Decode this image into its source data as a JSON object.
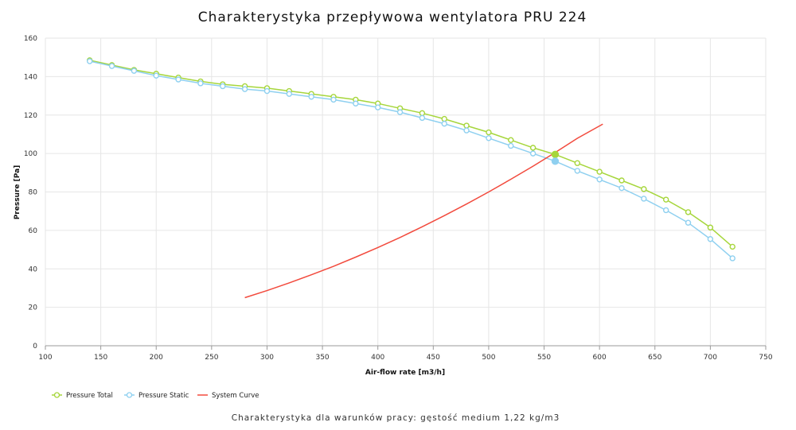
{
  "page": {
    "title": "Charakterystyka przepływowa wentylatora PRU 224",
    "footnote": "Charakterystyka dla warunków pracy: gęstość medium 1,22 kg/m3"
  },
  "chart_data": {
    "type": "line",
    "title": "Charakterystyka przepływowa wentylatora PRU 224",
    "xlabel": "Air-flow rate [m3/h]",
    "ylabel": "Pressure [Pa]",
    "xlim": [
      100,
      750
    ],
    "ylim": [
      0,
      160
    ],
    "x_ticks": [
      100,
      150,
      200,
      250,
      300,
      350,
      400,
      450,
      500,
      550,
      600,
      650,
      700,
      750
    ],
    "y_ticks": [
      0,
      20,
      40,
      60,
      80,
      100,
      120,
      140,
      160
    ],
    "grid": true,
    "legend_position": "bottom-left",
    "series": [
      {
        "name": "Pressure Total",
        "color": "#a6d63b",
        "marker": "circle-open",
        "x": [
          140,
          160,
          180,
          200,
          220,
          240,
          260,
          280,
          300,
          320,
          340,
          360,
          380,
          400,
          420,
          440,
          460,
          480,
          500,
          520,
          540,
          560,
          580,
          600,
          620,
          640,
          660,
          680,
          700,
          720
        ],
        "y": [
          148.5,
          146,
          143.5,
          141.5,
          139.5,
          137.5,
          136,
          135,
          134,
          132.5,
          131,
          129.5,
          128,
          126,
          123.5,
          121,
          118,
          114.5,
          111,
          107,
          103,
          99.5,
          95,
          90.5,
          86,
          81.5,
          76,
          69.5,
          61.5,
          51.5
        ]
      },
      {
        "name": "Pressure Static",
        "color": "#8fd0f0",
        "marker": "circle-open",
        "x": [
          140,
          160,
          180,
          200,
          220,
          240,
          260,
          280,
          300,
          320,
          340,
          360,
          380,
          400,
          420,
          440,
          460,
          480,
          500,
          520,
          540,
          560,
          580,
          600,
          620,
          640,
          660,
          680,
          700,
          720
        ],
        "y": [
          148,
          145.5,
          143,
          140.5,
          138.5,
          136.5,
          135,
          133.5,
          132.5,
          131,
          129.5,
          128,
          126,
          124,
          121.5,
          118.5,
          115.5,
          112,
          108,
          104,
          100,
          96,
          91,
          86.5,
          82,
          76.5,
          70.5,
          64,
          55.5,
          45.5
        ]
      },
      {
        "name": "System Curve",
        "color": "#f24a3d",
        "marker": "none",
        "x": [
          280,
          300,
          320,
          340,
          360,
          380,
          400,
          420,
          440,
          460,
          480,
          500,
          520,
          540,
          560,
          580,
          603
        ],
        "y": [
          25,
          28.7,
          32.7,
          36.9,
          41.3,
          46.1,
          51.1,
          56.3,
          61.9,
          67.7,
          73.7,
          80,
          86.6,
          93.4,
          100.5,
          107.9,
          115.3
        ]
      }
    ],
    "operating_point": {
      "x": 560,
      "y_total": 99.5,
      "y_static": 96
    }
  }
}
